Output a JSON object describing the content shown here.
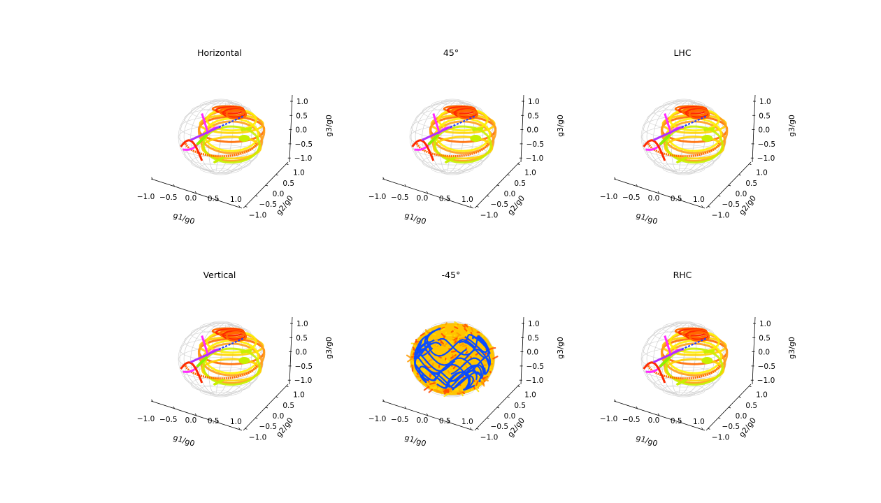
{
  "figure": {
    "type": "poincare-sphere-3d-grid",
    "rows": 2,
    "cols": 3
  },
  "chart_data": [
    {
      "type": "scatter",
      "projection": "3d",
      "title": "Horizontal",
      "variant": "trace",
      "xlabel": "g1/g0",
      "ylabel": "g2/g0",
      "zlabel": "g3/g0",
      "xticks": [
        "−1.0",
        "−0.5",
        "0.0",
        "0.5",
        "1.0"
      ],
      "yticks": [
        "−1.0",
        "−0.5",
        "0.0",
        "0.5",
        "1.0"
      ],
      "zticks": [
        "1.0",
        "0.5",
        "0.0",
        "−0.5",
        "−1.0"
      ],
      "xlim": [
        -1,
        1
      ],
      "ylim": [
        -1,
        1
      ],
      "zlim": [
        -1,
        1
      ]
    },
    {
      "type": "scatter",
      "projection": "3d",
      "title": "45°",
      "variant": "trace",
      "xlabel": "g1/g0",
      "ylabel": "g2/g0",
      "zlabel": "g3/g0",
      "xticks": [
        "−1.0",
        "−0.5",
        "0.0",
        "0.5",
        "1.0"
      ],
      "yticks": [
        "−1.0",
        "−0.5",
        "0.0",
        "0.5",
        "1.0"
      ],
      "zticks": [
        "1.0",
        "0.5",
        "0.0",
        "−0.5",
        "−1.0"
      ],
      "xlim": [
        -1,
        1
      ],
      "ylim": [
        -1,
        1
      ],
      "zlim": [
        -1,
        1
      ]
    },
    {
      "type": "scatter",
      "projection": "3d",
      "title": "LHC",
      "variant": "trace",
      "xlabel": "g1/g0",
      "ylabel": "g2/g0",
      "zlabel": "g3/g0",
      "xticks": [
        "−1.0",
        "−0.5",
        "0.0",
        "0.5",
        "1.0"
      ],
      "yticks": [
        "−1.0",
        "−0.5",
        "0.0",
        "0.5",
        "1.0"
      ],
      "zticks": [
        "1.0",
        "0.5",
        "0.0",
        "−0.5",
        "−1.0"
      ],
      "xlim": [
        -1,
        1
      ],
      "ylim": [
        -1,
        1
      ],
      "zlim": [
        -1,
        1
      ]
    },
    {
      "type": "scatter",
      "projection": "3d",
      "title": "Vertical",
      "variant": "trace",
      "xlabel": "g1/g0",
      "ylabel": "g2/g0",
      "zlabel": "g3/g0",
      "xticks": [
        "−1.0",
        "−0.5",
        "0.0",
        "0.5",
        "1.0"
      ],
      "yticks": [
        "−1.0",
        "−0.5",
        "0.0",
        "0.5",
        "1.0"
      ],
      "zticks": [
        "1.0",
        "0.5",
        "0.0",
        "−0.5",
        "−1.0"
      ],
      "xlim": [
        -1,
        1
      ],
      "ylim": [
        -1,
        1
      ],
      "zlim": [
        -1,
        1
      ]
    },
    {
      "type": "scatter",
      "projection": "3d",
      "title": "-45°",
      "variant": "filled",
      "xlabel": "g1/g0",
      "ylabel": "g2/g0",
      "zlabel": "g3/g0",
      "xticks": [
        "−1.0",
        "−0.5",
        "0.0",
        "0.5",
        "1.0"
      ],
      "yticks": [
        "−1.0",
        "−0.5",
        "0.0",
        "0.5",
        "1.0"
      ],
      "zticks": [
        "1.0",
        "0.5",
        "0.0",
        "−0.5",
        "−1.0"
      ],
      "xlim": [
        -1,
        1
      ],
      "ylim": [
        -1,
        1
      ],
      "zlim": [
        -1,
        1
      ]
    },
    {
      "type": "scatter",
      "projection": "3d",
      "title": "RHC",
      "variant": "trace",
      "xlabel": "g1/g0",
      "ylabel": "g2/g0",
      "zlabel": "g3/g0",
      "xticks": [
        "−1.0",
        "−0.5",
        "0.0",
        "0.5",
        "1.0"
      ],
      "yticks": [
        "−1.0",
        "−0.5",
        "0.0",
        "0.5",
        "1.0"
      ],
      "zticks": [
        "1.0",
        "0.5",
        "0.0",
        "−0.5",
        "−1.0"
      ],
      "xlim": [
        -1,
        1
      ],
      "ylim": [
        -1,
        1
      ],
      "zlim": [
        -1,
        1
      ]
    }
  ],
  "colors": {
    "sphere_wire": "#d3d3d3",
    "axis": "#000000",
    "trace_palette": [
      "#ff2a00",
      "#ff6a00",
      "#ff9e1a",
      "#ffd200",
      "#ffee00",
      "#c8f000",
      "#8cf000",
      "#ff2aff",
      "#b030ff",
      "#1e40ff"
    ],
    "filled_base": "#ffc400",
    "filled_accent": [
      "#ff9a00",
      "#ffe000",
      "#ff4a00"
    ],
    "filled_lines": "#0a4cff"
  }
}
